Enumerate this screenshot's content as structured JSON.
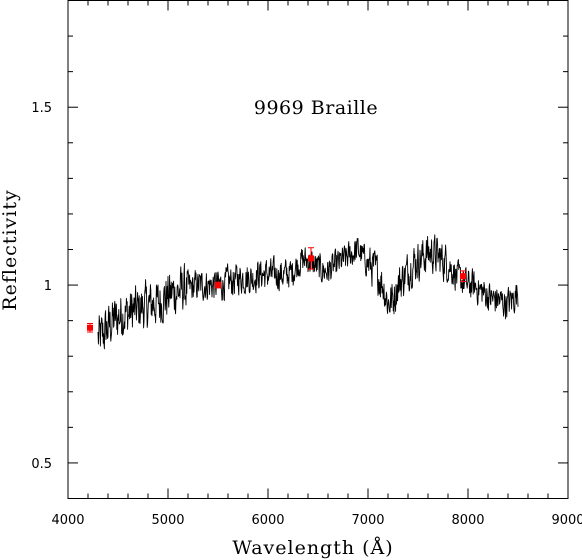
{
  "chart_data": {
    "type": "line",
    "title": "9969 Braille",
    "xlabel": "Wavelength (Å)",
    "ylabel": "Reflectivity",
    "xlim": [
      4000,
      9000
    ],
    "ylim": [
      0.4,
      1.8
    ],
    "xticks": [
      4000,
      5000,
      6000,
      7000,
      8000,
      9000
    ],
    "xtick_labels": [
      "4000",
      "5000",
      "6000",
      "7000",
      "8000",
      "9000"
    ],
    "yticks": [
      0.5,
      1,
      1.5
    ],
    "ytick_labels": [
      "0.5",
      "1",
      "1.5"
    ],
    "grid": false,
    "colors": {
      "spectrum": "#000000",
      "photometry": "#ff0000"
    },
    "series": [
      {
        "kind": "line",
        "x": [
          4300,
          4350,
          4400,
          4450,
          4500,
          4550,
          4600,
          4650,
          4700,
          4750,
          4800,
          4850,
          4900,
          4950,
          5000,
          5050,
          5100,
          5150,
          5200,
          5250,
          5300,
          5350,
          5400,
          5450,
          5500,
          5550,
          5600,
          5650,
          5700,
          5750,
          5800,
          5850,
          5900,
          5950,
          6000,
          6050,
          6100,
          6150,
          6200,
          6250,
          6300,
          6350,
          6400,
          6450,
          6500,
          6550,
          6600,
          6650,
          6700,
          6750,
          6800,
          6850,
          6900,
          6950,
          7000,
          7050,
          7100,
          7150,
          7200,
          7250,
          7300,
          7350,
          7400,
          7450,
          7500,
          7550,
          7600,
          7650,
          7700,
          7750,
          7800,
          7850,
          7900,
          7950,
          8000,
          8050,
          8100,
          8150,
          8200,
          8250,
          8300,
          8350,
          8400,
          8450,
          8500
        ],
        "y": [
          0.85,
          0.86,
          0.88,
          0.9,
          0.91,
          0.92,
          0.92,
          0.93,
          0.93,
          0.94,
          0.94,
          0.95,
          0.95,
          0.96,
          0.97,
          0.98,
          0.98,
          0.99,
          0.99,
          0.995,
          1.0,
          1.0,
          1.0,
          1.0,
          1.0,
          1.0,
          1.01,
          1.01,
          1.02,
          1.02,
          1.02,
          1.02,
          1.03,
          1.03,
          1.03,
          1.03,
          1.03,
          1.03,
          1.03,
          1.04,
          1.06,
          1.07,
          1.07,
          1.06,
          1.05,
          1.04,
          1.04,
          1.05,
          1.06,
          1.07,
          1.08,
          1.09,
          1.1,
          1.08,
          1.06,
          1.05,
          1.03,
          1.0,
          0.95,
          0.96,
          1.0,
          1.02,
          1.04,
          1.06,
          1.07,
          1.08,
          1.09,
          1.09,
          1.08,
          1.07,
          1.06,
          1.04,
          1.02,
          1.01,
          1.0,
          1.0,
          0.99,
          0.98,
          0.97,
          0.96,
          0.96,
          0.95,
          0.95,
          0.96,
          0.98
        ]
      },
      {
        "kind": "points",
        "x": [
          4220,
          5500,
          6430,
          7950
        ],
        "y": [
          0.88,
          1.0,
          1.075,
          1.025
        ],
        "yerr": [
          0.012,
          0.008,
          0.03,
          0.015
        ]
      }
    ]
  }
}
